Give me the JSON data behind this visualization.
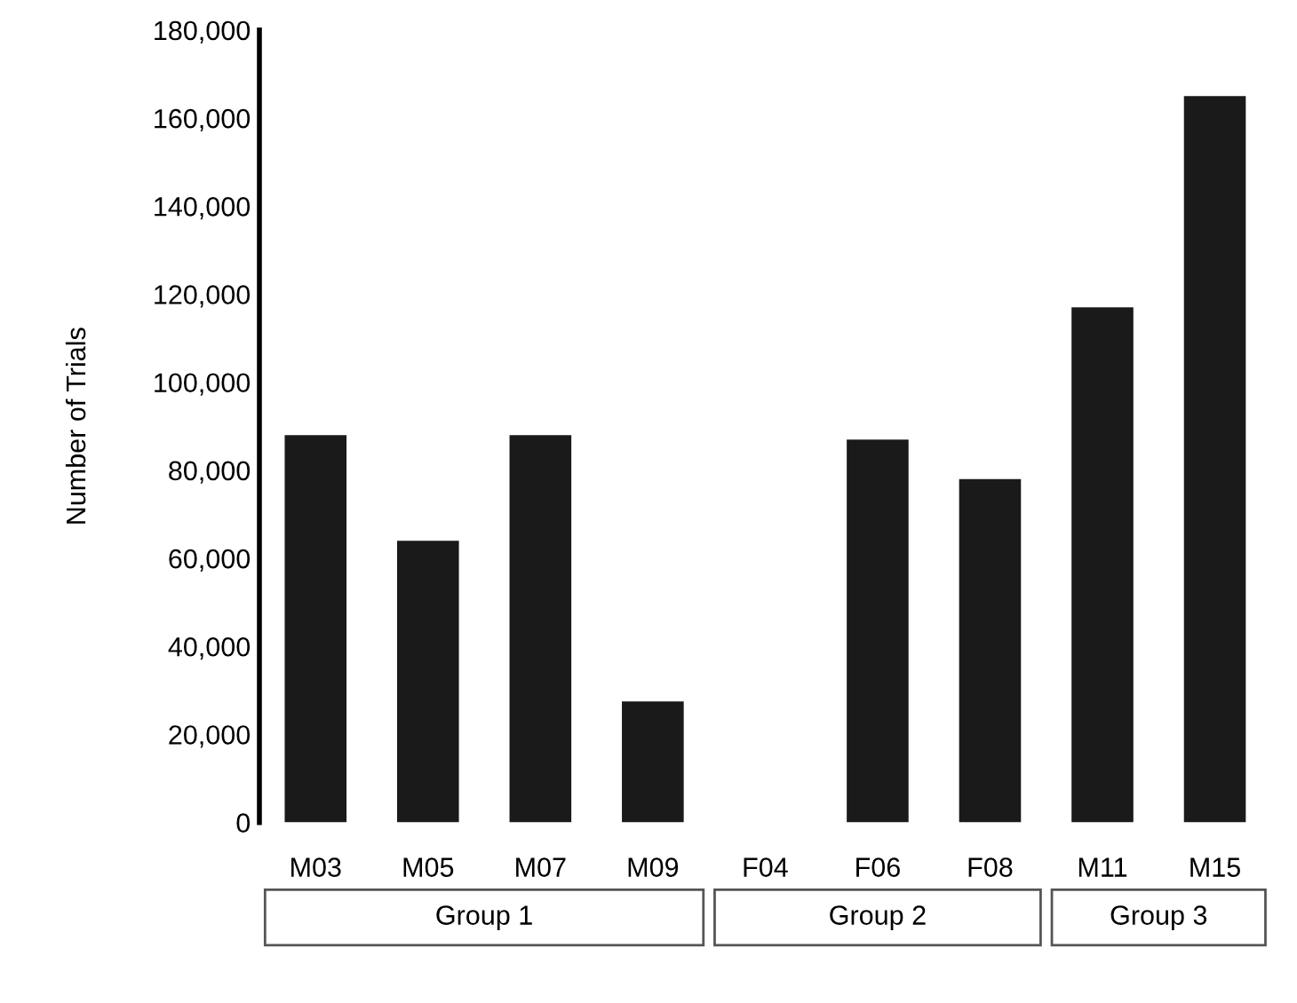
{
  "chart_data": {
    "type": "bar",
    "ylabel": "Number of Trials",
    "categories": [
      "M03",
      "M05",
      "M07",
      "M09",
      "F04",
      "F06",
      "F08",
      "M11",
      "M15"
    ],
    "values": [
      88000,
      64000,
      88000,
      27500,
      0,
      87000,
      78000,
      117000,
      165000
    ],
    "color": "#1a1a1a",
    "ylim": [
      0,
      180000
    ],
    "yticks": [
      {
        "value": 0,
        "label": "0"
      },
      {
        "value": 20000,
        "label": "20,000"
      },
      {
        "value": 40000,
        "label": "40,000"
      },
      {
        "value": 60000,
        "label": "60,000"
      },
      {
        "value": 80000,
        "label": "80,000"
      },
      {
        "value": 100000,
        "label": "100,000"
      },
      {
        "value": 120000,
        "label": "120,000"
      },
      {
        "value": 140000,
        "label": "140,000"
      },
      {
        "value": 160000,
        "label": "160,000"
      },
      {
        "value": 180000,
        "label": "180,000"
      }
    ],
    "grid": false,
    "annotations": [
      "Group 1",
      "Group 2",
      "Group 3"
    ]
  }
}
